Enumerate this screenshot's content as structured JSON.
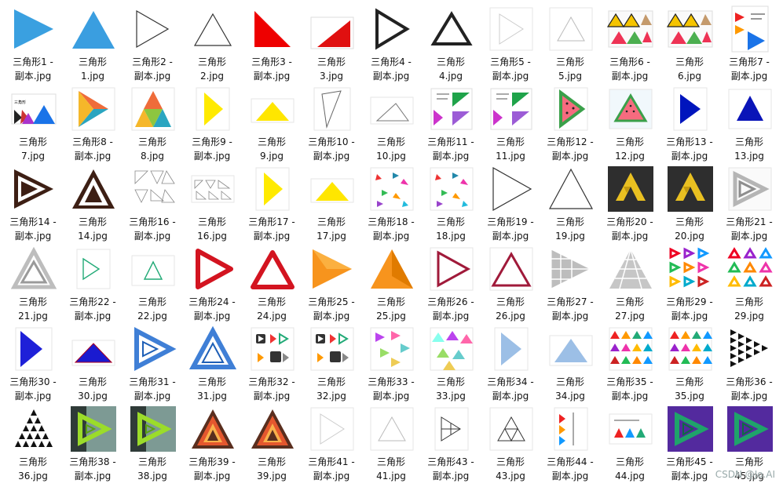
{
  "files": [
    {
      "label": "三角形1 -\n副本.jpg",
      "icon": "blue-right-triangle"
    },
    {
      "label": "三角形\n1.jpg",
      "icon": "blue-triangle"
    },
    {
      "label": "三角形2 -\n副本.jpg",
      "icon": "outline-right-triangle"
    },
    {
      "label": "三角形\n2.jpg",
      "icon": "outline-triangle"
    },
    {
      "label": "三角形3 -\n副本.jpg",
      "icon": "red-right-angle-triangle"
    },
    {
      "label": "三角形\n3.jpg",
      "icon": "red-right-angle-triangle-small"
    },
    {
      "label": "三角形4 -\n副本.jpg",
      "icon": "dark-outline-right-triangle"
    },
    {
      "label": "三角形\n4.jpg",
      "icon": "dark-outline-triangle"
    },
    {
      "label": "三角形5 -\n副本.jpg",
      "icon": "faint-right-triangle"
    },
    {
      "label": "三角形\n5.jpg",
      "icon": "faint-triangle"
    },
    {
      "label": "三角形6 -\n副本.jpg",
      "icon": "warning-signs-collage"
    },
    {
      "label": "三角形\n6.jpg",
      "icon": "warning-signs-collage"
    },
    {
      "label": "三角形7 -\n副本.jpg",
      "icon": "colored-triangles-doc"
    },
    {
      "label": "三角形\n7.jpg",
      "icon": "colored-triangles-row"
    },
    {
      "label": "三角形8 -\n副本.jpg",
      "icon": "tri-color-right"
    },
    {
      "label": "三角形\n8.jpg",
      "icon": "tri-color-triangle"
    },
    {
      "label": "三角形9 -\n副本.jpg",
      "icon": "yellow-right-triangle"
    },
    {
      "label": "三角形\n9.jpg",
      "icon": "yellow-triangle"
    },
    {
      "label": "三角形10 -\n副本.jpg",
      "icon": "thin-outline-right"
    },
    {
      "label": "三角形\n10.jpg",
      "icon": "thin-outline-flat"
    },
    {
      "label": "三角形11 -\n副本.jpg",
      "icon": "green-purple-doc"
    },
    {
      "label": "三角形\n11.jpg",
      "icon": "green-purple-doc"
    },
    {
      "label": "三角形12 -\n副本.jpg",
      "icon": "watermelon-right"
    },
    {
      "label": "三角形\n12.jpg",
      "icon": "watermelon-triangle"
    },
    {
      "label": "三角形13 -\n副本.jpg",
      "icon": "navy-right-triangle"
    },
    {
      "label": "三角形\n13.jpg",
      "icon": "navy-triangle"
    },
    {
      "label": "三角形14 -\n副本.jpg",
      "icon": "nested-right-triangle"
    },
    {
      "label": "三角形\n14.jpg",
      "icon": "nested-triangle"
    },
    {
      "label": "三角形16 -\n副本.jpg",
      "icon": "sketch-triangles"
    },
    {
      "label": "三角形\n16.jpg",
      "icon": "sketch-triangles-small"
    },
    {
      "label": "三角形17 -\n副本.jpg",
      "icon": "yellow-right-triangle"
    },
    {
      "label": "三角形\n17.jpg",
      "icon": "yellow-triangle"
    },
    {
      "label": "三角形18 -\n副本.jpg",
      "icon": "scattered-triangles"
    },
    {
      "label": "三角形\n18.jpg",
      "icon": "scattered-triangles"
    },
    {
      "label": "三角形19 -\n副本.jpg",
      "icon": "large-outline-right"
    },
    {
      "label": "三角形\n19.jpg",
      "icon": "large-outline-triangle"
    },
    {
      "label": "三角形20 -\n副本.jpg",
      "icon": "gold-triforce-dark"
    },
    {
      "label": "三角形\n20.jpg",
      "icon": "gold-triforce-dark"
    },
    {
      "label": "三角形21 -\n副本.jpg",
      "icon": "silver-impossible-right"
    },
    {
      "label": "三角形\n21.jpg",
      "icon": "silver-impossible-triangle"
    },
    {
      "label": "三角形22 -\n副本.jpg",
      "icon": "green-small-right"
    },
    {
      "label": "三角形\n22.jpg",
      "icon": "green-small-triangle"
    },
    {
      "label": "三角形24 -\n副本.jpg",
      "icon": "red-rounded-right"
    },
    {
      "label": "三角形\n24.jpg",
      "icon": "red-rounded-triangle"
    },
    {
      "label": "三角形25 -\n副本.jpg",
      "icon": "orange-right"
    },
    {
      "label": "三角形\n25.jpg",
      "icon": "orange-triangle"
    },
    {
      "label": "三角形26 -\n副本.jpg",
      "icon": "maroon-outline-right"
    },
    {
      "label": "三角形\n26.jpg",
      "icon": "maroon-outline-triangle"
    },
    {
      "label": "三角形27 -\n副本.jpg",
      "icon": "grey-grid-right"
    },
    {
      "label": "三角形\n27.jpg",
      "icon": "grey-grid-triangle"
    },
    {
      "label": "三角形29 -\n副本.jpg",
      "icon": "colorful-right-grid"
    },
    {
      "label": "三角形\n29.jpg",
      "icon": "colorful-triangle-grid"
    },
    {
      "label": "三角形30 -\n副本.jpg",
      "icon": "blue-right-flat"
    },
    {
      "label": "三角形\n30.jpg",
      "icon": "blue-flat-triangle"
    },
    {
      "label": "三角形31 -\n副本.jpg",
      "icon": "blue-impossible-right"
    },
    {
      "label": "三角形\n31.jpg",
      "icon": "blue-impossible-triangle"
    },
    {
      "label": "三角形32 -\n副本.jpg",
      "icon": "play-icons-set"
    },
    {
      "label": "三角形\n32.jpg",
      "icon": "play-icons-set"
    },
    {
      "label": "三角形33 -\n副本.jpg",
      "icon": "pastel-scatter-right"
    },
    {
      "label": "三角形\n33.jpg",
      "icon": "pastel-scatter"
    },
    {
      "label": "三角形34 -\n副本.jpg",
      "icon": "lightblue-right"
    },
    {
      "label": "三角形\n34.jpg",
      "icon": "lightblue-triangle"
    },
    {
      "label": "三角形35 -\n副本.jpg",
      "icon": "rainbow-triangles-grid"
    },
    {
      "label": "三角形\n35.jpg",
      "icon": "rainbow-triangles-grid"
    },
    {
      "label": "三角形36 -\n副本.jpg",
      "icon": "black-dotted-right"
    },
    {
      "label": "三角形\n36.jpg",
      "icon": "black-dotted-triangle"
    },
    {
      "label": "三角形38 -\n副本.jpg",
      "icon": "green-impossible-right"
    },
    {
      "label": "三角形\n38.jpg",
      "icon": "green-impossible-right"
    },
    {
      "label": "三角形39 -\n副本.jpg",
      "icon": "brown-frame-triangle"
    },
    {
      "label": "三角形\n39.jpg",
      "icon": "brown-frame-triangle"
    },
    {
      "label": "三角形41 -\n副本.jpg",
      "icon": "faint-right-triangle"
    },
    {
      "label": "三角形\n41.jpg",
      "icon": "faint-triangle"
    },
    {
      "label": "三角形43 -\n副本.jpg",
      "icon": "subdivided-right"
    },
    {
      "label": "三角形\n43.jpg",
      "icon": "subdivided-triangle"
    },
    {
      "label": "三角形44 -\n副本.jpg",
      "icon": "doc-vertical-triangles"
    },
    {
      "label": "三角形\n44.jpg",
      "icon": "doc-horizontal-triangles"
    },
    {
      "label": "三角形45 -\n副本.jpg",
      "icon": "purple-glow-right"
    },
    {
      "label": "三角形\n45.jpg",
      "icon": "purple-glow-right"
    }
  ],
  "watermark": "CSDN @Jo.AI"
}
